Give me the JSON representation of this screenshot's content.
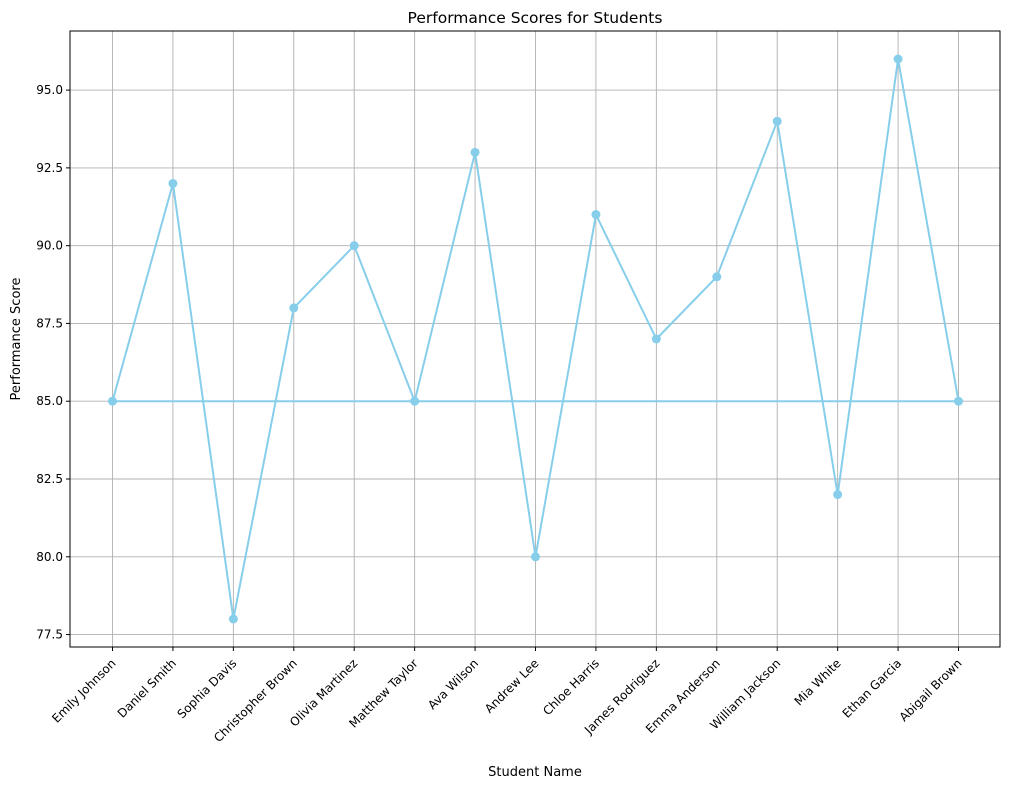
{
  "chart_data": {
    "type": "line",
    "title": "Performance Scores for Students",
    "xlabel": "Student Name",
    "ylabel": "Performance Score",
    "categories": [
      "Emily Johnson",
      "Daniel Smith",
      "Sophia Davis",
      "Christopher Brown",
      "Olivia Martinez",
      "Matthew Taylor",
      "Ava Wilson",
      "Andrew Lee",
      "Chloe Harris",
      "James Rodriguez",
      "Emma Anderson",
      "William Jackson",
      "Mia White",
      "Ethan Garcia",
      "Abigail Brown"
    ],
    "series": [
      {
        "values": [
          85,
          92,
          78,
          88,
          90,
          85,
          93,
          80,
          91,
          87,
          89,
          94,
          82,
          96,
          85
        ]
      }
    ],
    "closed_loop": true,
    "ylim": [
      77.1,
      96.9
    ],
    "yticks": [
      77.5,
      80.0,
      82.5,
      85.0,
      87.5,
      90.0,
      92.5,
      95.0
    ],
    "ytick_labels": [
      "77.5",
      "80.0",
      "82.5",
      "85.0",
      "87.5",
      "90.0",
      "92.5",
      "95.0"
    ],
    "grid": true,
    "color": "#87ceeb"
  }
}
